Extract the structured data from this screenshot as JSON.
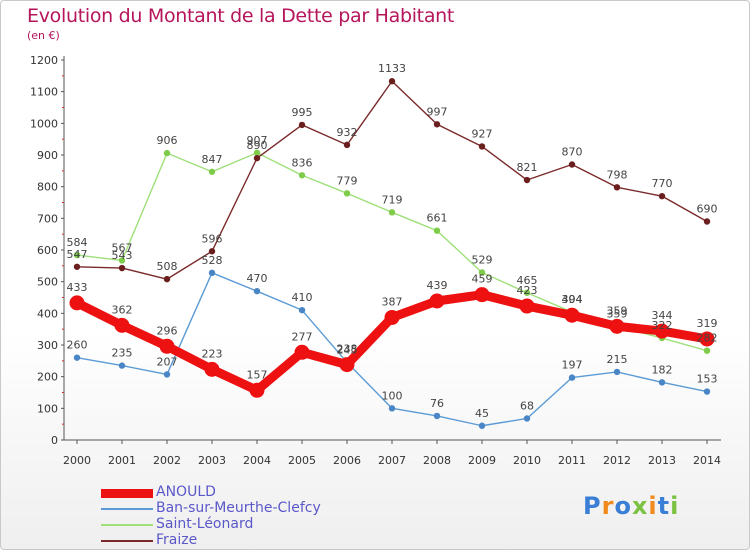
{
  "title": "Evolution du Montant de la Dette par Habitant",
  "unit": "(en €)",
  "logo": "Proxiti",
  "chart_data": {
    "type": "line",
    "title": "Evolution du Montant de la Dette par Habitant",
    "ylabel": "(en €)",
    "categories": [
      "2000",
      "2001",
      "2002",
      "2003",
      "2004",
      "2005",
      "2006",
      "2007",
      "2008",
      "2009",
      "2010",
      "2011",
      "2012",
      "2013",
      "2014"
    ],
    "ylim": [
      0,
      1200
    ],
    "yticks": [
      0,
      100,
      200,
      300,
      400,
      500,
      600,
      700,
      800,
      900,
      1000,
      1100,
      1200
    ],
    "grid": false,
    "legend": "bottom-left",
    "series": [
      {
        "name": "Ban-sur-Meurthe-Clefcy",
        "color": "#5b9bd5",
        "dot": "#4a86c6",
        "values": [
          260,
          235,
          207,
          528,
          470,
          410,
          245,
          100,
          76,
          45,
          68,
          197,
          215,
          182,
          153
        ]
      },
      {
        "name": "Saint-Léonard",
        "color": "#9fe07a",
        "dot": "#7fcc4a",
        "values": [
          584,
          567,
          906,
          847,
          907,
          836,
          779,
          719,
          661,
          529,
          465,
          404,
          359,
          322,
          282
        ]
      },
      {
        "name": "Fraize",
        "color": "#7a2a2a",
        "dot": "#6b1e1e",
        "values": [
          547,
          543,
          508,
          596,
          890,
          995,
          932,
          1133,
          997,
          927,
          821,
          870,
          798,
          770,
          690
        ]
      },
      {
        "name": "ANOULD",
        "color": "#ee1111",
        "dot": "#ee1111",
        "values": [
          433,
          362,
          296,
          223,
          157,
          277,
          238,
          387,
          439,
          459,
          423,
          394,
          359,
          344,
          319
        ]
      }
    ],
    "legend_order": [
      "ANOULD",
      "Ban-sur-Meurthe-Clefcy",
      "Saint-Léonard",
      "Fraize"
    ]
  }
}
